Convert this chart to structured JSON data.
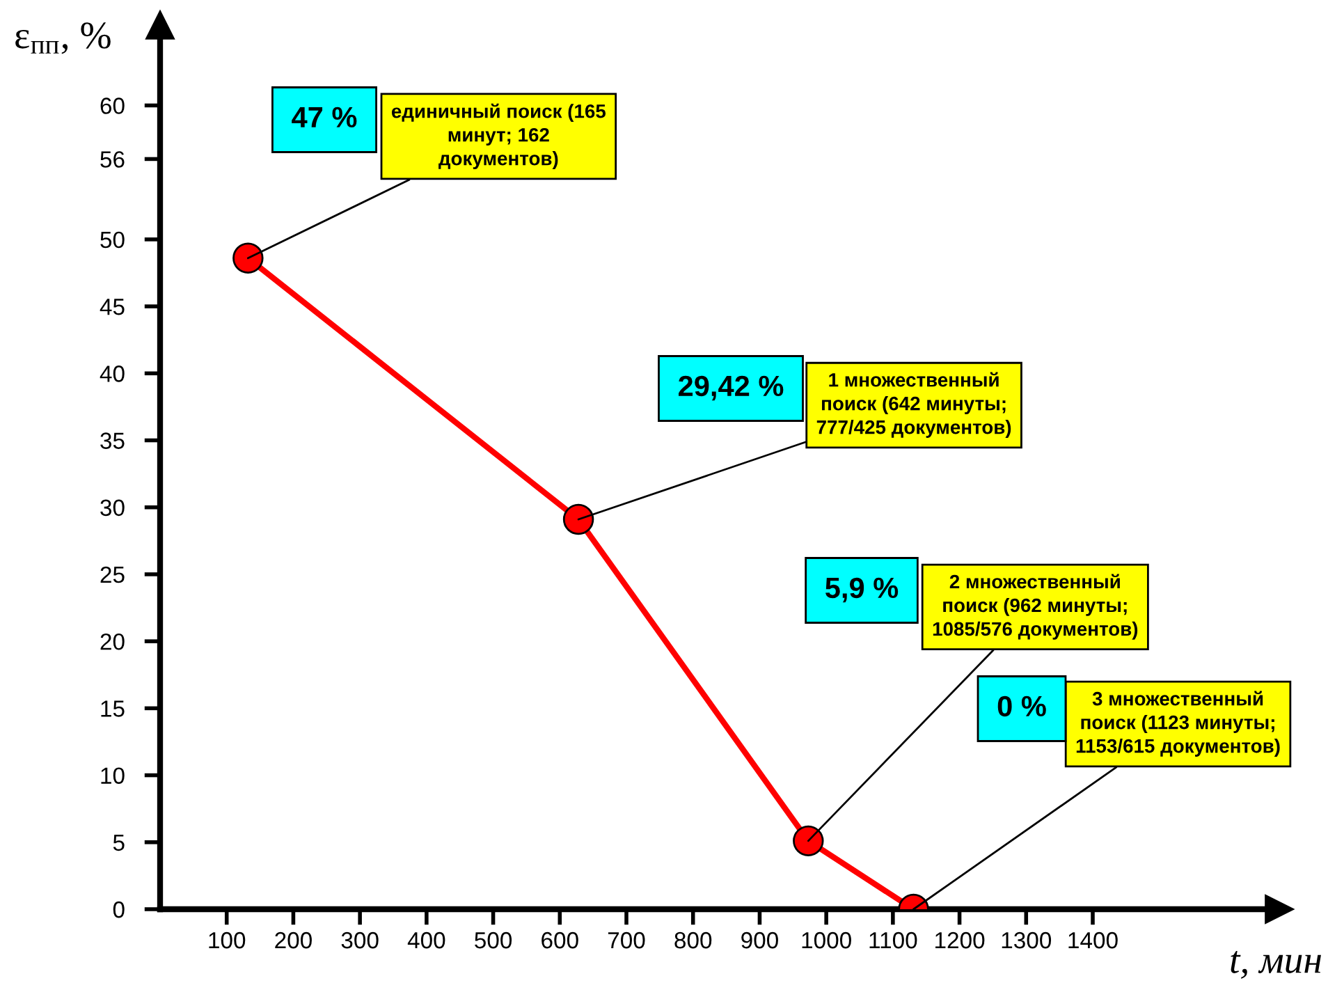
{
  "chart_data": {
    "type": "line",
    "xlabel": "t, мин",
    "ylabel": "ε$_{пп}$, %",
    "x": [
      132,
      628,
      973,
      1131
    ],
    "series": [
      {
        "color": "#ff0000",
        "values": [
          48.6,
          29.1,
          5.1,
          0
        ]
      }
    ],
    "xlim": [
      0,
      1680
    ],
    "ylim": [
      0,
      66
    ],
    "xticks": [
      100,
      200,
      300,
      400,
      500,
      600,
      700,
      800,
      900,
      1000,
      1100,
      1200,
      1300,
      1400
    ],
    "yticks": [
      0,
      5,
      10,
      15,
      20,
      25,
      30,
      35,
      40,
      45,
      50,
      56,
      60
    ],
    "marker": "circle",
    "line_style": "solid",
    "grid": false,
    "legend": false,
    "annotations": [
      "47 %",
      {
        "text": "единичный поиск (165\nминут; 162\nдокументов)",
        "x": 132,
        "y": 48.6
      },
      "29,42 %",
      {
        "text": "1 множественный\nпоиск (642 минуты;\n777/425 документов)",
        "x": 628,
        "y": 29.1
      },
      "5,9 %",
      {
        "text": "2 множественный\nпоиск (962 минуты;\n1085/576 документов)",
        "x": 973,
        "y": 5.1
      },
      "0 %",
      {
        "text": "3 множественный\nпоиск (1123 минуты;\n1153/615 документов)",
        "x": 1131,
        "y": 0
      }
    ]
  }
}
